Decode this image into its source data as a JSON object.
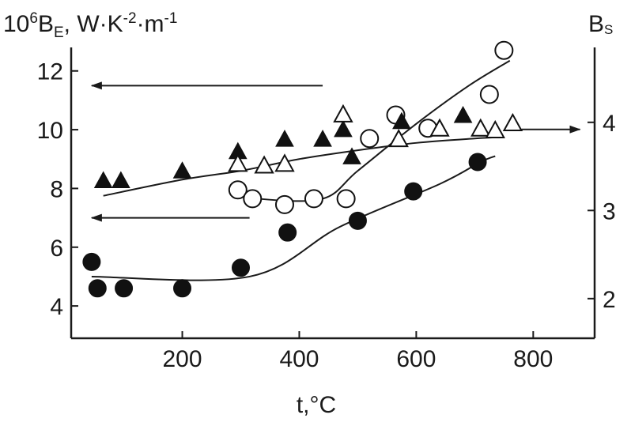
{
  "chart_data": {
    "type": "scatter",
    "title": "",
    "xlabel": "t,°C",
    "ylabel_left": {
      "base": "10",
      "exp": "6",
      "var": "B",
      "sub": "E",
      "units": ", W·K",
      "units_exp": "-2",
      "units2": "·m",
      "units2_exp": "-1"
    },
    "ylabel_right": {
      "var": "B",
      "sub": "S"
    },
    "xlim": [
      10,
      905
    ],
    "ylim_left": [
      2.9,
      12.8
    ],
    "ylim_right": [
      1.55,
      4.85
    ],
    "x_ticks": [
      200,
      400,
      600,
      800
    ],
    "y_left_ticks": [
      4,
      6,
      8,
      10,
      12
    ],
    "y_right_ticks": [
      2,
      3,
      4
    ],
    "grid": false,
    "series": [
      {
        "marker": "filled-circle",
        "axis": "left",
        "x": [
          45,
          55,
          100,
          200,
          300,
          380,
          500,
          595,
          705
        ],
        "y": [
          5.5,
          4.6,
          4.6,
          4.6,
          5.3,
          6.5,
          6.9,
          7.9,
          8.9
        ]
      },
      {
        "marker": "open-circle",
        "axis": "left",
        "x": [
          295,
          320,
          375,
          425,
          480,
          520,
          565,
          620,
          725,
          750
        ],
        "y": [
          7.95,
          7.65,
          7.45,
          7.65,
          7.65,
          9.7,
          10.5,
          10.05,
          11.2,
          12.7
        ]
      },
      {
        "marker": "filled-triangle",
        "axis": "right",
        "x": [
          65,
          95,
          200,
          295,
          375,
          440,
          475,
          490,
          575,
          680
        ],
        "y": [
          3.33,
          3.33,
          3.44,
          3.66,
          3.8,
          3.8,
          3.91,
          3.6,
          4.0,
          4.07
        ]
      },
      {
        "marker": "open-triangle",
        "axis": "right",
        "x": [
          295,
          340,
          375,
          475,
          570,
          640,
          710,
          735,
          765
        ],
        "y": [
          3.52,
          3.5,
          3.52,
          4.08,
          3.8,
          3.92,
          3.92,
          3.9,
          3.98
        ]
      }
    ],
    "fit_lines": [
      {
        "axis": "left",
        "x": [
          45,
          315,
          470,
          640,
          710,
          735
        ],
        "y": [
          5.0,
          5.0,
          6.7,
          8.15,
          8.9,
          9.1
        ]
      },
      {
        "axis": "left",
        "x": [
          300,
          330,
          440,
          500,
          600,
          690,
          760
        ],
        "y": [
          7.9,
          7.65,
          7.65,
          8.6,
          10.2,
          11.5,
          12.35
        ]
      },
      {
        "axis": "left",
        "x": [
          65,
          200,
          300,
          400,
          500,
          600,
          700,
          750
        ],
        "y": [
          7.75,
          8.3,
          8.6,
          9.0,
          9.3,
          9.55,
          9.7,
          9.75
        ]
      }
    ],
    "annotation_arrows": [
      {
        "direction": "left",
        "axis": "left",
        "x_from": 440,
        "x_to": 45,
        "y": 11.5
      },
      {
        "direction": "left",
        "axis": "left",
        "x_from": 315,
        "x_to": 45,
        "y": 7.0
      },
      {
        "direction": "right",
        "axis": "right",
        "x_from": 780,
        "x_to": 880,
        "y": 3.92
      }
    ]
  }
}
